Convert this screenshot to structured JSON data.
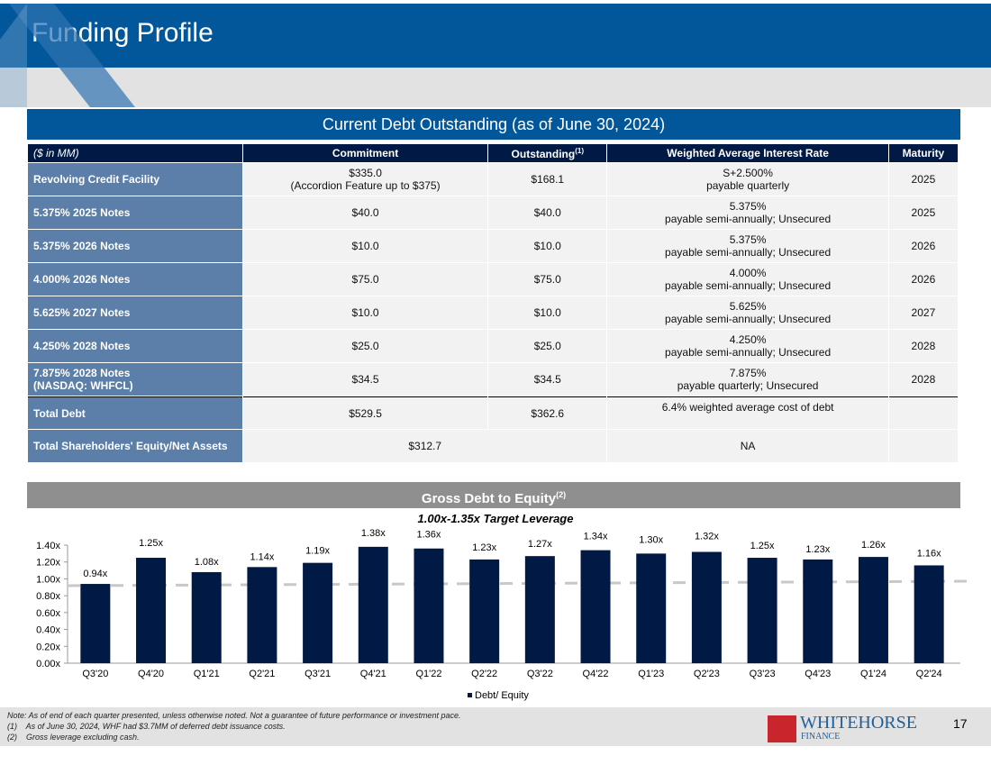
{
  "header": {
    "title": "Funding Profile",
    "page_number": "17"
  },
  "table": {
    "title": "Current Debt Outstanding (as of June 30, 2024)",
    "columns": [
      "($ in MM)",
      "Commitment",
      "Outstanding",
      "Weighted Average Interest Rate",
      "Maturity"
    ],
    "outstanding_sup": "(1)",
    "rows": [
      {
        "label": "Revolving Credit Facility",
        "commitment": "$335.0",
        "commitment_note": "(Accordion Feature up to $375)",
        "outstanding": "$168.1",
        "rate": "S+2.500%",
        "rate_note": "payable quarterly",
        "maturity": "2025"
      },
      {
        "label": "5.375% 2025 Notes",
        "commitment": "$40.0",
        "commitment_note": "",
        "outstanding": "$40.0",
        "rate": "5.375%",
        "rate_note": "payable semi-annually; Unsecured",
        "maturity": "2025"
      },
      {
        "label": "5.375% 2026 Notes",
        "commitment": "$10.0",
        "commitment_note": "",
        "outstanding": "$10.0",
        "rate": "5.375%",
        "rate_note": "payable semi-annually; Unsecured",
        "maturity": "2026"
      },
      {
        "label": "4.000% 2026 Notes",
        "commitment": "$75.0",
        "commitment_note": "",
        "outstanding": "$75.0",
        "rate": "4.000%",
        "rate_note": "payable semi-annually; Unsecured",
        "maturity": "2026"
      },
      {
        "label": "5.625% 2027 Notes",
        "commitment": "$10.0",
        "commitment_note": "",
        "outstanding": "$10.0",
        "rate": "5.625%",
        "rate_note": "payable semi-annually; Unsecured",
        "maturity": "2027"
      },
      {
        "label": "4.250% 2028 Notes",
        "commitment": "$25.0",
        "commitment_note": "",
        "outstanding": "$25.0",
        "rate": "4.250%",
        "rate_note": "payable semi-annually;  Unsecured",
        "maturity": "2028"
      },
      {
        "label": "7.875% 2028 Notes",
        "label_note": "(NASDAQ: WHFCL)",
        "commitment": "$34.5",
        "commitment_note": "",
        "outstanding": "$34.5",
        "rate": "7.875%",
        "rate_note": "payable quarterly;  Unsecured",
        "maturity": "2028"
      }
    ],
    "total": {
      "label": "Total Debt",
      "commitment": "$529.5",
      "outstanding": "$362.6",
      "rate": "6.4% weighted average cost of debt"
    },
    "equity": {
      "label": "Total Shareholders' Equity/Net Assets",
      "value": "$312.7",
      "rate": "NA"
    }
  },
  "chart_data": {
    "type": "bar",
    "title": "Gross Debt to Equity",
    "title_sup": "(2)",
    "subtitle": "1.00x-1.35x Target Leverage",
    "categories": [
      "Q3'20",
      "Q4'20",
      "Q1'21",
      "Q2'21",
      "Q3'21",
      "Q4'21",
      "Q1'22",
      "Q2'22",
      "Q3'22",
      "Q4'22",
      "Q1'23",
      "Q2'23",
      "Q3'23",
      "Q4'23",
      "Q1'24",
      "Q2'24"
    ],
    "series": [
      {
        "name": "Debt/ Equity",
        "values": [
          0.94,
          1.25,
          1.08,
          1.14,
          1.19,
          1.38,
          1.36,
          1.23,
          1.27,
          1.34,
          1.3,
          1.32,
          1.25,
          1.23,
          1.26,
          1.16
        ]
      }
    ],
    "data_labels": [
      "0.94x",
      "1.25x",
      "1.08x",
      "1.14x",
      "1.19x",
      "1.38x",
      "1.36x",
      "1.23x",
      "1.27x",
      "1.34x",
      "1.30x",
      "1.32x",
      "1.25x",
      "1.23x",
      "1.26x",
      "1.16x"
    ],
    "yticks": [
      "0.00x",
      "0.20x",
      "0.40x",
      "0.60x",
      "0.80x",
      "1.00x",
      "1.20x",
      "1.40x"
    ],
    "ylim": [
      0,
      1.4
    ],
    "legend": "bottom",
    "bar_color": "#001a45",
    "grid": false
  },
  "footer": {
    "note": "Note: As of end of each quarter presented, unless otherwise noted. Not a guarantee of future performance or investment pace.",
    "fn1": "(1)    As of June 30, 2024, WHF had $3.7MM of deferred debt issuance costs.",
    "fn2": "(2)    Gross leverage excluding cash.",
    "logo_text": "WHITEHORSE",
    "logo_sub": "FINANCE"
  }
}
